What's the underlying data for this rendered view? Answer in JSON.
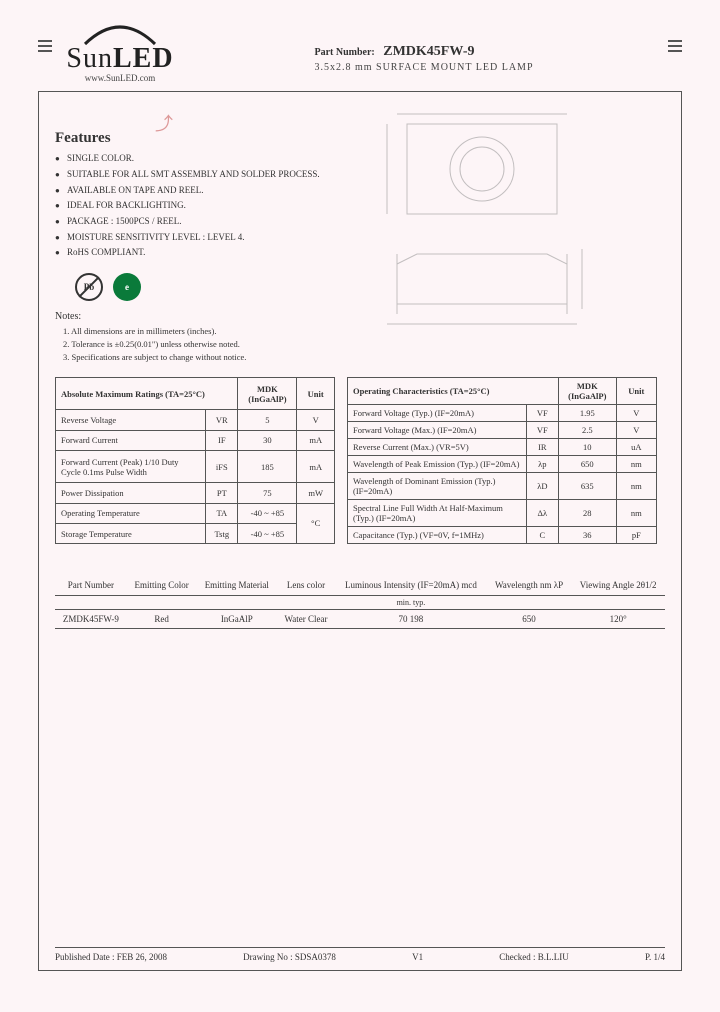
{
  "header": {
    "logo_main": "Sun",
    "logo_bold": "LED",
    "logo_url": "www.SunLED.com",
    "part_label": "Part Number:",
    "part_number": "ZMDK45FW-9",
    "subtitle": "3.5x2.8 mm SURFACE MOUNT LED LAMP"
  },
  "features": {
    "title": "Features",
    "items": [
      "SINGLE COLOR.",
      "SUITABLE FOR ALL SMT ASSEMBLY AND SOLDER PROCESS.",
      "AVAILABLE ON TAPE AND REEL.",
      "IDEAL FOR BACKLIGHTING.",
      "PACKAGE : 1500PCS / REEL.",
      "MOISTURE SENSITIVITY LEVEL : LEVEL 4.",
      "RoHS COMPLIANT."
    ]
  },
  "cert": {
    "pb": "Pb",
    "green": "e"
  },
  "notes": {
    "title": "Notes:",
    "items": [
      "1. All dimensions are in millimeters (inches).",
      "2. Tolerance is ±0.25(0.01\") unless otherwise noted.",
      "3. Specifications are subject to change without notice."
    ]
  },
  "abs_max": {
    "title": "Absolute Maximum Ratings (TA=25°C)",
    "col2": "MDK (InGaAlP)",
    "col3": "Unit",
    "rows": [
      {
        "p": "Reverse Voltage",
        "s": "VR",
        "v": "5",
        "u": "V"
      },
      {
        "p": "Forward Current",
        "s": "IF",
        "v": "30",
        "u": "mA"
      },
      {
        "p": "Forward Current (Peak) 1/10 Duty Cycle 0.1ms Pulse Width",
        "s": "iFS",
        "v": "185",
        "u": "mA"
      },
      {
        "p": "Power Dissipation",
        "s": "PT",
        "v": "75",
        "u": "mW"
      },
      {
        "p": "Operating Temperature",
        "s": "TA",
        "v": "-40 ~ +85",
        "u": "°C"
      },
      {
        "p": "Storage Temperature",
        "s": "Tstg",
        "v": "-40 ~ +85",
        "u": ""
      }
    ]
  },
  "op_char": {
    "title": "Operating Characteristics (TA=25°C)",
    "col2": "MDK (InGaAlP)",
    "col3": "Unit",
    "rows": [
      {
        "p": "Forward Voltage (Typ.) (IF=20mA)",
        "s": "VF",
        "v": "1.95",
        "u": "V"
      },
      {
        "p": "Forward Voltage (Max.) (IF=20mA)",
        "s": "VF",
        "v": "2.5",
        "u": "V"
      },
      {
        "p": "Reverse Current (Max.) (VR=5V)",
        "s": "IR",
        "v": "10",
        "u": "uA"
      },
      {
        "p": "Wavelength of Peak Emission (Typ.) (IF=20mA)",
        "s": "λp",
        "v": "650",
        "u": "nm"
      },
      {
        "p": "Wavelength of Dominant Emission (Typ.) (IF=20mA)",
        "s": "λD",
        "v": "635",
        "u": "nm"
      },
      {
        "p": "Spectral Line Full Width At Half-Maximum (Typ.) (IF=20mA)",
        "s": "Δλ",
        "v": "28",
        "u": "nm"
      },
      {
        "p": "Capacitance (Typ.) (VF=0V, f=1MHz)",
        "s": "C",
        "v": "36",
        "u": "pF"
      }
    ]
  },
  "bottom": {
    "headers": [
      "Part Number",
      "Emitting Color",
      "Emitting Material",
      "Lens color",
      "Luminous Intensity (IF=20mA) mcd",
      "Wavelength nm λP",
      "Viewing Angle 2θ1/2"
    ],
    "sub": [
      "",
      "",
      "",
      "",
      "min.       typ.",
      "",
      ""
    ],
    "row": [
      "ZMDK45FW-9",
      "Red",
      "InGaAlP",
      "Water Clear",
      "70          198",
      "650",
      "120°"
    ]
  },
  "footer": {
    "date": "Published Date : FEB 26, 2008",
    "drawing": "Drawing No : SDSA0378",
    "ver": "V1",
    "checked": "Checked : B.L.LIU",
    "page": "P. 1/4"
  }
}
